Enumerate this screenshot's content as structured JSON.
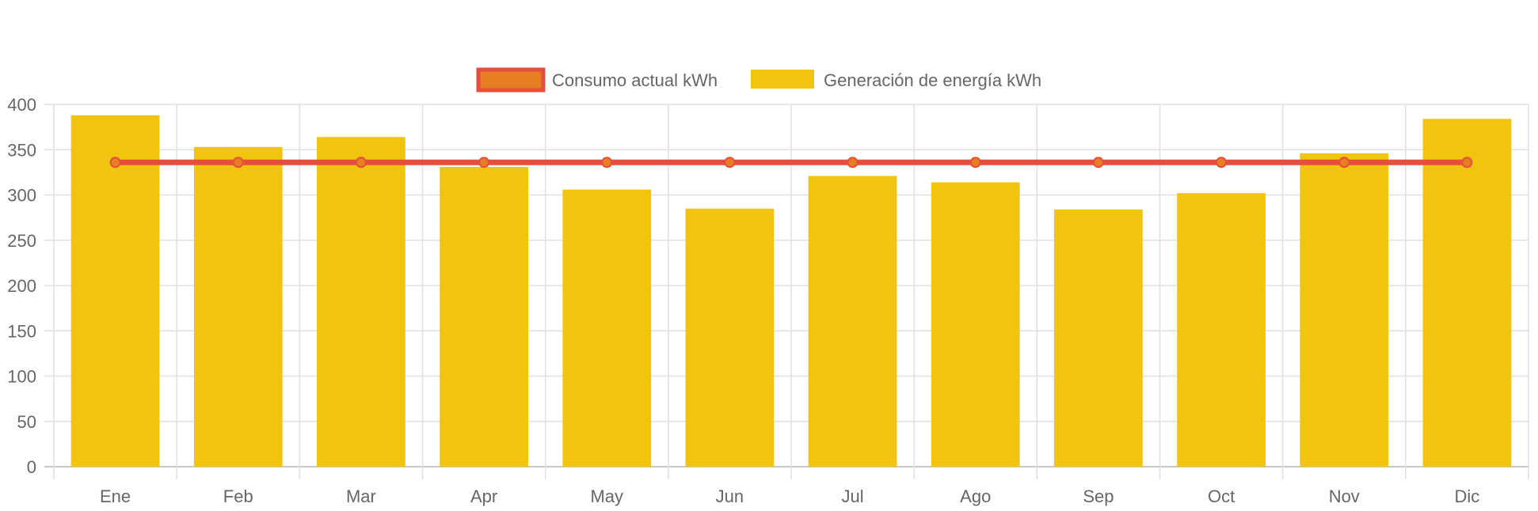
{
  "chart_data": {
    "type": "bar",
    "categories": [
      "Ene",
      "Feb",
      "Mar",
      "Apr",
      "May",
      "Jun",
      "Jul",
      "Ago",
      "Sep",
      "Oct",
      "Nov",
      "Dic"
    ],
    "series": [
      {
        "name": "Consumo actual kWh",
        "type": "line",
        "values": [
          336,
          336,
          336,
          336,
          336,
          336,
          336,
          336,
          336,
          336,
          336,
          336
        ],
        "color": "#e74c3c",
        "point_color": "#e67e22"
      },
      {
        "name": "Generación de energía kWh",
        "type": "bar",
        "values": [
          388,
          353,
          364,
          331,
          306,
          285,
          321,
          314,
          284,
          302,
          346,
          384
        ],
        "color": "#f1c40f"
      }
    ],
    "ylim": [
      0,
      400
    ],
    "yticks": [
      0,
      50,
      100,
      150,
      200,
      250,
      300,
      350,
      400
    ],
    "grid": true,
    "legend": "top-center",
    "title": "",
    "xlabel": "",
    "ylabel": ""
  }
}
